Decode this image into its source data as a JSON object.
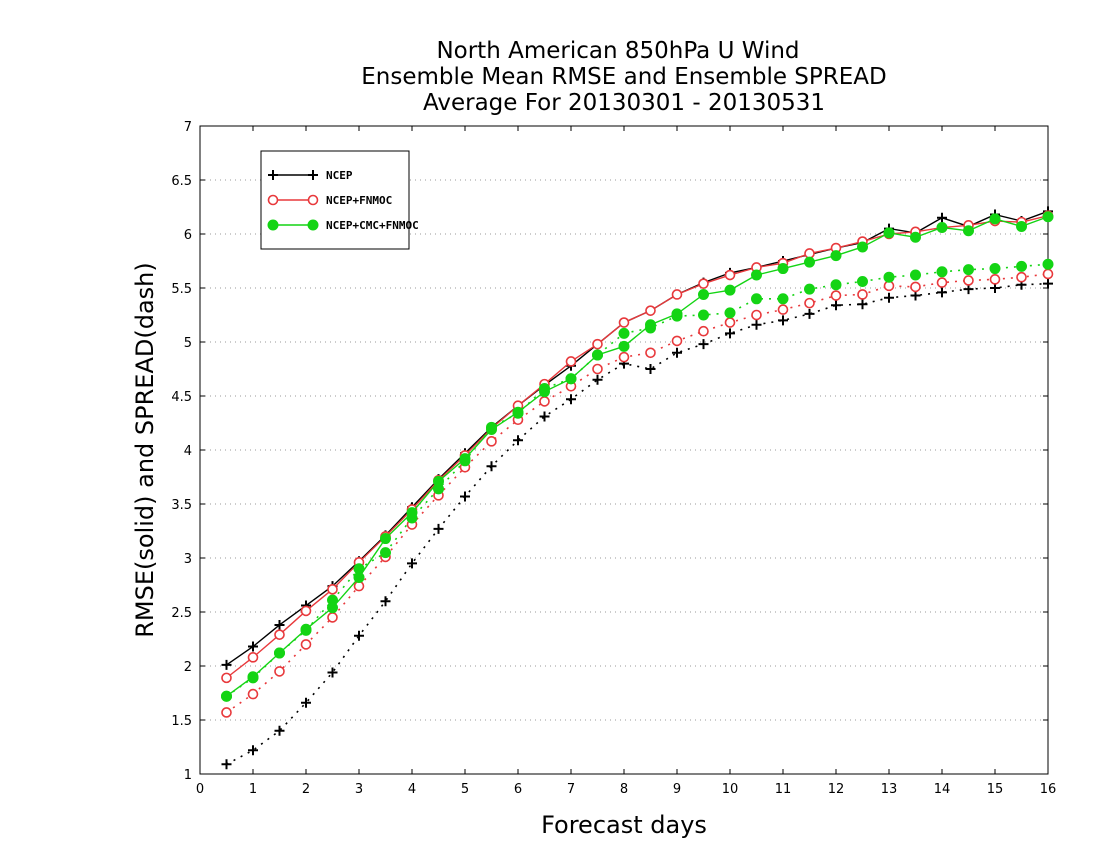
{
  "chart_data": {
    "type": "line",
    "title_lines": [
      "North American 850hPa U Wind",
      "Ensemble Mean RMSE and Ensemble SPREAD",
      "Average For 20130301 - 20130531"
    ],
    "xlabel": "Forecast days",
    "ylabel": "RMSE(solid) and SPREAD(dash)",
    "xlim": [
      0,
      16
    ],
    "ylim": [
      1,
      7
    ],
    "xticks": [
      0,
      1,
      2,
      3,
      4,
      5,
      6,
      7,
      8,
      9,
      10,
      11,
      12,
      13,
      14,
      15,
      16
    ],
    "yticks": [
      1,
      1.5,
      2,
      2.5,
      3,
      3.5,
      4,
      4.5,
      5,
      5.5,
      6,
      6.5,
      7
    ],
    "ytick_labels": [
      "1",
      "1.5",
      "2",
      "2.5",
      "3",
      "3.5",
      "4",
      "4.5",
      "5",
      "5.5",
      "6",
      "6.5",
      "7"
    ],
    "grid": "horizontal dotted",
    "legend_position": "top-left",
    "x": [
      0.5,
      1,
      1.5,
      2,
      2.5,
      3,
      3.5,
      4,
      4.5,
      5,
      5.5,
      6,
      6.5,
      7,
      7.5,
      8,
      8.5,
      9,
      9.5,
      10,
      10.5,
      11,
      11.5,
      12,
      12.5,
      13,
      13.5,
      14,
      14.5,
      15,
      15.5,
      16
    ],
    "series": [
      {
        "name": "NCEP",
        "color": "#000000",
        "marker": "plus",
        "rmse": [
          2.01,
          2.18,
          2.38,
          2.56,
          2.74,
          2.97,
          3.21,
          3.47,
          3.73,
          3.97,
          4.21,
          4.41,
          4.6,
          4.78,
          4.98,
          5.18,
          5.29,
          5.44,
          5.55,
          5.64,
          5.69,
          5.75,
          5.81,
          5.87,
          5.92,
          6.05,
          6.01,
          6.15,
          6.07,
          6.18,
          6.12,
          6.21
        ],
        "spread": [
          1.09,
          1.22,
          1.4,
          1.66,
          1.94,
          2.28,
          2.6,
          2.95,
          3.27,
          3.57,
          3.85,
          4.09,
          4.31,
          4.47,
          4.65,
          4.8,
          4.75,
          4.9,
          4.98,
          5.08,
          5.16,
          5.2,
          5.26,
          5.34,
          5.35,
          5.41,
          5.43,
          5.46,
          5.49,
          5.5,
          5.53,
          5.54
        ]
      },
      {
        "name": "NCEP+FNMOC",
        "color": "#e8393c",
        "marker": "open-circle",
        "rmse": [
          1.89,
          2.08,
          2.29,
          2.51,
          2.71,
          2.96,
          3.2,
          3.45,
          3.72,
          3.95,
          4.2,
          4.41,
          4.61,
          4.82,
          4.98,
          5.18,
          5.29,
          5.44,
          5.54,
          5.62,
          5.69,
          5.73,
          5.82,
          5.87,
          5.93,
          6.0,
          6.02,
          6.06,
          6.08,
          6.12,
          6.11,
          6.17
        ],
        "spread": [
          1.57,
          1.74,
          1.95,
          2.2,
          2.45,
          2.74,
          3.01,
          3.31,
          3.58,
          3.84,
          4.08,
          4.28,
          4.45,
          4.59,
          4.75,
          4.86,
          4.9,
          5.01,
          5.1,
          5.18,
          5.25,
          5.3,
          5.36,
          5.43,
          5.44,
          5.52,
          5.51,
          5.55,
          5.57,
          5.58,
          5.6,
          5.63
        ]
      },
      {
        "name": "NCEP+CMC+FNMOC",
        "color": "#14d414",
        "marker": "filled-circle",
        "rmse": [
          1.72,
          1.9,
          2.12,
          2.34,
          2.54,
          2.82,
          3.18,
          3.42,
          3.71,
          3.92,
          4.19,
          4.35,
          4.54,
          4.66,
          4.88,
          4.96,
          5.16,
          5.26,
          5.44,
          5.48,
          5.62,
          5.68,
          5.74,
          5.8,
          5.88,
          6.01,
          5.97,
          6.06,
          6.03,
          6.14,
          6.07,
          6.16
        ],
        "spread": [
          1.72,
          1.89,
          2.12,
          2.33,
          2.61,
          2.9,
          3.05,
          3.37,
          3.64,
          3.9,
          4.21,
          4.34,
          4.57,
          4.66,
          4.88,
          5.08,
          5.13,
          5.24,
          5.25,
          5.27,
          5.4,
          5.4,
          5.49,
          5.53,
          5.56,
          5.6,
          5.62,
          5.65,
          5.67,
          5.68,
          5.7,
          5.72
        ]
      }
    ]
  }
}
